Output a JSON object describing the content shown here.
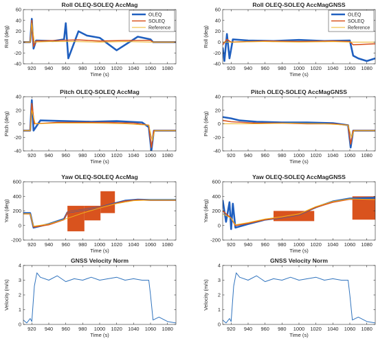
{
  "colors": {
    "oleq": "#1f5fbf",
    "soleq": "#d9531e",
    "reference": "#eeb420",
    "velocity": "#2e72bd",
    "axis": "#262626",
    "grid": "#e6e6e6"
  },
  "chart_data": [
    {
      "id": "roll-accmag",
      "type": "line",
      "title": "Roll OLEQ-SOLEQ AccMag",
      "xlabel": "Time (s)",
      "ylabel": "Roll (deg)",
      "xlim": [
        910,
        1090
      ],
      "ylim": [
        -40,
        60
      ],
      "xticks": [
        920,
        940,
        960,
        980,
        1000,
        1020,
        1040,
        1060,
        1080
      ],
      "yticks": [
        -40,
        -20,
        0,
        20,
        40,
        60
      ],
      "legend": {
        "position": "top-right",
        "entries": [
          "OLEQ",
          "SOLEQ",
          "Reference"
        ]
      },
      "series": [
        {
          "name": "OLEQ",
          "x": [
            910,
            918,
            920,
            922,
            925,
            945,
            958,
            960,
            963,
            975,
            985,
            1000,
            1020,
            1045,
            1060,
            1063,
            1090
          ],
          "y": [
            0,
            0,
            43,
            -12,
            3,
            2,
            5,
            35,
            -30,
            20,
            12,
            8,
            -15,
            10,
            5,
            0,
            0
          ]
        },
        {
          "name": "SOLEQ",
          "x": [
            910,
            918,
            920,
            922,
            925,
            950,
            975,
            1000,
            1030,
            1060,
            1063,
            1090
          ],
          "y": [
            0,
            0,
            40,
            -8,
            2,
            3,
            4,
            2,
            3,
            3,
            0,
            0
          ]
        },
        {
          "name": "Reference",
          "x": [
            910,
            918,
            920,
            923,
            940,
            970,
            1000,
            1030,
            1060,
            1063,
            1090
          ],
          "y": [
            0,
            0,
            35,
            0,
            1,
            1,
            0,
            1,
            0,
            0,
            0
          ]
        }
      ]
    },
    {
      "id": "roll-accmaggnss",
      "type": "line",
      "title": "Roll OLEQ-SOLEQ AccMagGNSS",
      "xlabel": "Time (s)",
      "ylabel": "Roll (deg)",
      "xlim": [
        910,
        1090
      ],
      "ylim": [
        -40,
        60
      ],
      "xticks": [
        920,
        940,
        960,
        980,
        1000,
        1020,
        1040,
        1060,
        1080
      ],
      "yticks": [
        -40,
        -20,
        0,
        20,
        40,
        60
      ],
      "legend": {
        "position": "top-right",
        "entries": [
          "OLEQ",
          "SOLEQ",
          "Reference"
        ]
      },
      "series": [
        {
          "name": "OLEQ",
          "x": [
            910,
            912,
            915,
            918,
            922,
            940,
            970,
            1000,
            1030,
            1060,
            1064,
            1070,
            1080,
            1090
          ],
          "y": [
            -10,
            -35,
            15,
            -30,
            5,
            3,
            2,
            4,
            2,
            3,
            -25,
            -30,
            -35,
            -30
          ]
        },
        {
          "name": "SOLEQ",
          "x": [
            910,
            915,
            920,
            960,
            1000,
            1040,
            1060,
            1064,
            1090
          ],
          "y": [
            -5,
            5,
            0,
            2,
            1,
            2,
            1,
            -5,
            -3
          ]
        },
        {
          "name": "Reference",
          "x": [
            910,
            920,
            960,
            1000,
            1040,
            1060,
            1064,
            1090
          ],
          "y": [
            0,
            0,
            1,
            0,
            1,
            0,
            0,
            0
          ]
        }
      ]
    },
    {
      "id": "pitch-accmag",
      "type": "line",
      "title": "Pitch OLEQ-SOLEQ AccMag",
      "xlabel": "Time (s)",
      "ylabel": "Pitch (deg)",
      "xlim": [
        910,
        1090
      ],
      "ylim": [
        -40,
        40
      ],
      "xticks": [
        920,
        940,
        960,
        980,
        1000,
        1020,
        1040,
        1060,
        1080
      ],
      "yticks": [
        -40,
        -20,
        0,
        20,
        40
      ],
      "series": [
        {
          "name": "OLEQ",
          "x": [
            910,
            918,
            920,
            922,
            930,
            960,
            990,
            1020,
            1050,
            1058,
            1061,
            1064,
            1090
          ],
          "y": [
            -10,
            -10,
            35,
            -10,
            5,
            4,
            3,
            4,
            2,
            -5,
            -40,
            -10,
            -10
          ]
        },
        {
          "name": "SOLEQ",
          "x": [
            910,
            918,
            920,
            923,
            950,
            980,
            1010,
            1040,
            1058,
            1061,
            1064,
            1090
          ],
          "y": [
            -10,
            -10,
            30,
            0,
            2,
            2,
            2,
            1,
            -2,
            -35,
            -10,
            -10
          ]
        },
        {
          "name": "Reference",
          "x": [
            910,
            918,
            920,
            924,
            950,
            990,
            1030,
            1058,
            1062,
            1065,
            1090
          ],
          "y": [
            -10,
            -10,
            20,
            0,
            1,
            1,
            0,
            -2,
            -25,
            -10,
            -10
          ]
        }
      ]
    },
    {
      "id": "pitch-accmaggnss",
      "type": "line",
      "title": "Pitch OLEQ-SOLEQ AccMagGNSS",
      "xlabel": "Time (s)",
      "ylabel": "Pitch (deg)",
      "xlim": [
        910,
        1090
      ],
      "ylim": [
        -40,
        40
      ],
      "xticks": [
        920,
        940,
        960,
        980,
        1000,
        1020,
        1040,
        1060,
        1080
      ],
      "yticks": [
        -40,
        -20,
        0,
        20,
        40
      ],
      "series": [
        {
          "name": "OLEQ",
          "x": [
            910,
            920,
            930,
            950,
            980,
            1010,
            1040,
            1058,
            1061,
            1064,
            1090
          ],
          "y": [
            10,
            8,
            5,
            3,
            2,
            2,
            1,
            -2,
            -35,
            -10,
            -10
          ]
        },
        {
          "name": "SOLEQ",
          "x": [
            910,
            920,
            950,
            980,
            1010,
            1040,
            1058,
            1061,
            1064,
            1090
          ],
          "y": [
            5,
            3,
            1,
            1,
            0,
            0,
            -2,
            -30,
            -10,
            -10
          ]
        },
        {
          "name": "Reference",
          "x": [
            910,
            920,
            950,
            990,
            1030,
            1058,
            1062,
            1065,
            1090
          ],
          "y": [
            0,
            0,
            0,
            1,
            0,
            -2,
            -20,
            -10,
            -10
          ]
        }
      ]
    },
    {
      "id": "yaw-accmag",
      "type": "line",
      "title": "Yaw OLEQ-SOLEQ AccMag",
      "xlabel": "Time (s)",
      "ylabel": "Yaw (deg)",
      "xlim": [
        910,
        1090
      ],
      "ylim": [
        -200,
        600
      ],
      "xticks": [
        920,
        940,
        960,
        980,
        1000,
        1020,
        1040,
        1060,
        1080
      ],
      "yticks": [
        -200,
        0,
        200,
        400,
        600
      ],
      "series": [
        {
          "name": "OLEQ",
          "x": [
            910,
            918,
            922,
            940,
            958,
            962,
            1000,
            1020,
            1030,
            1045,
            1060,
            1090
          ],
          "y": [
            170,
            170,
            -30,
            20,
            90,
            180,
            250,
            310,
            340,
            355,
            350,
            350
          ]
        },
        {
          "name": "SOLEQ",
          "x": [
            910,
            918,
            922,
            940,
            958,
            962,
            1000,
            1020,
            1030,
            1045,
            1060,
            1090
          ],
          "y": [
            160,
            160,
            -20,
            10,
            80,
            180,
            250,
            305,
            335,
            350,
            348,
            348
          ]
        },
        {
          "name": "Reference",
          "x": [
            910,
            918,
            922,
            940,
            960,
            980,
            1000,
            1020,
            1040,
            1060,
            1090
          ],
          "y": [
            160,
            160,
            -10,
            20,
            90,
            170,
            240,
            300,
            340,
            350,
            350
          ]
        }
      ],
      "bands": [
        {
          "series": "SOLEQ",
          "x": [
            962,
            982
          ],
          "y": [
            -80,
            270
          ]
        },
        {
          "series": "SOLEQ",
          "x": [
            982,
            1001
          ],
          "y": [
            70,
            270
          ]
        },
        {
          "series": "SOLEQ",
          "x": [
            1001,
            1018
          ],
          "y": [
            170,
            470
          ]
        }
      ]
    },
    {
      "id": "yaw-accmaggnss",
      "type": "line",
      "title": "Yaw OLEQ-SOLEQ AccMagGNSS",
      "xlabel": "Time (s)",
      "ylabel": "Yaw (deg)",
      "xlim": [
        910,
        1090
      ],
      "ylim": [
        -200,
        600
      ],
      "xticks": [
        920,
        940,
        960,
        980,
        1000,
        1020,
        1040,
        1060,
        1080
      ],
      "yticks": [
        -200,
        0,
        200,
        400,
        600
      ],
      "series": [
        {
          "name": "OLEQ",
          "x": [
            910,
            914,
            918,
            920,
            922,
            925,
            940,
            960,
            980,
            1000,
            1020,
            1040,
            1060,
            1090
          ],
          "y": [
            350,
            50,
            320,
            -50,
            300,
            -30,
            20,
            80,
            110,
            150,
            250,
            330,
            370,
            380
          ]
        },
        {
          "name": "SOLEQ",
          "x": [
            910,
            920,
            925,
            940,
            960,
            980,
            1000,
            1020,
            1040,
            1060,
            1090
          ],
          "y": [
            200,
            100,
            0,
            30,
            80,
            110,
            150,
            250,
            320,
            360,
            350
          ]
        },
        {
          "name": "Reference",
          "x": [
            910,
            920,
            925,
            940,
            960,
            980,
            1000,
            1020,
            1040,
            1060,
            1090
          ],
          "y": [
            160,
            100,
            10,
            40,
            90,
            120,
            160,
            260,
            330,
            365,
            355
          ]
        }
      ],
      "bands": [
        {
          "series": "SOLEQ",
          "x": [
            970,
            1018
          ],
          "y": [
            60,
            200
          ]
        },
        {
          "series": "SOLEQ",
          "x": [
            1063,
            1090
          ],
          "y": [
            80,
            400
          ]
        }
      ]
    },
    {
      "id": "velocity-1",
      "type": "line",
      "title": "GNSS Velocity Norm",
      "xlabel": "Time (s)",
      "ylabel": "Velocity (m/s)",
      "xlim": [
        910,
        1090
      ],
      "ylim": [
        0,
        4
      ],
      "xticks": [
        920,
        940,
        960,
        980,
        1000,
        1020,
        1040,
        1060,
        1080
      ],
      "yticks": [
        0,
        1,
        2,
        3,
        4
      ],
      "series": [
        {
          "x": [
            910,
            914,
            918,
            920,
            923,
            926,
            930,
            940,
            950,
            960,
            970,
            980,
            990,
            1000,
            1010,
            1020,
            1030,
            1040,
            1050,
            1058,
            1060,
            1063,
            1070,
            1080,
            1090
          ],
          "y": [
            0.3,
            0.1,
            0.4,
            0.2,
            2.6,
            3.5,
            3.2,
            3.0,
            3.3,
            2.9,
            3.1,
            3.0,
            3.2,
            3.0,
            3.1,
            3.2,
            3.0,
            3.1,
            3.0,
            3.0,
            2.0,
            0.3,
            0.5,
            0.2,
            0.1
          ]
        }
      ]
    },
    {
      "id": "velocity-2",
      "type": "line",
      "title": "GNSS Velocity Norm",
      "xlabel": "Time (s)",
      "ylabel": "Velocity (m/s)",
      "xlim": [
        910,
        1090
      ],
      "ylim": [
        0,
        4
      ],
      "xticks": [
        920,
        940,
        960,
        980,
        1000,
        1020,
        1040,
        1060,
        1080
      ],
      "yticks": [
        0,
        1,
        2,
        3,
        4
      ],
      "series": [
        {
          "x": [
            910,
            914,
            918,
            920,
            923,
            926,
            930,
            940,
            950,
            960,
            970,
            980,
            990,
            1000,
            1010,
            1020,
            1030,
            1040,
            1050,
            1058,
            1060,
            1063,
            1070,
            1080,
            1090
          ],
          "y": [
            0.3,
            0.1,
            0.4,
            0.2,
            2.6,
            3.5,
            3.2,
            3.0,
            3.3,
            2.9,
            3.1,
            3.0,
            3.2,
            3.0,
            3.1,
            3.2,
            3.0,
            3.1,
            3.0,
            3.0,
            2.0,
            0.3,
            0.5,
            0.2,
            0.1
          ]
        }
      ]
    }
  ]
}
